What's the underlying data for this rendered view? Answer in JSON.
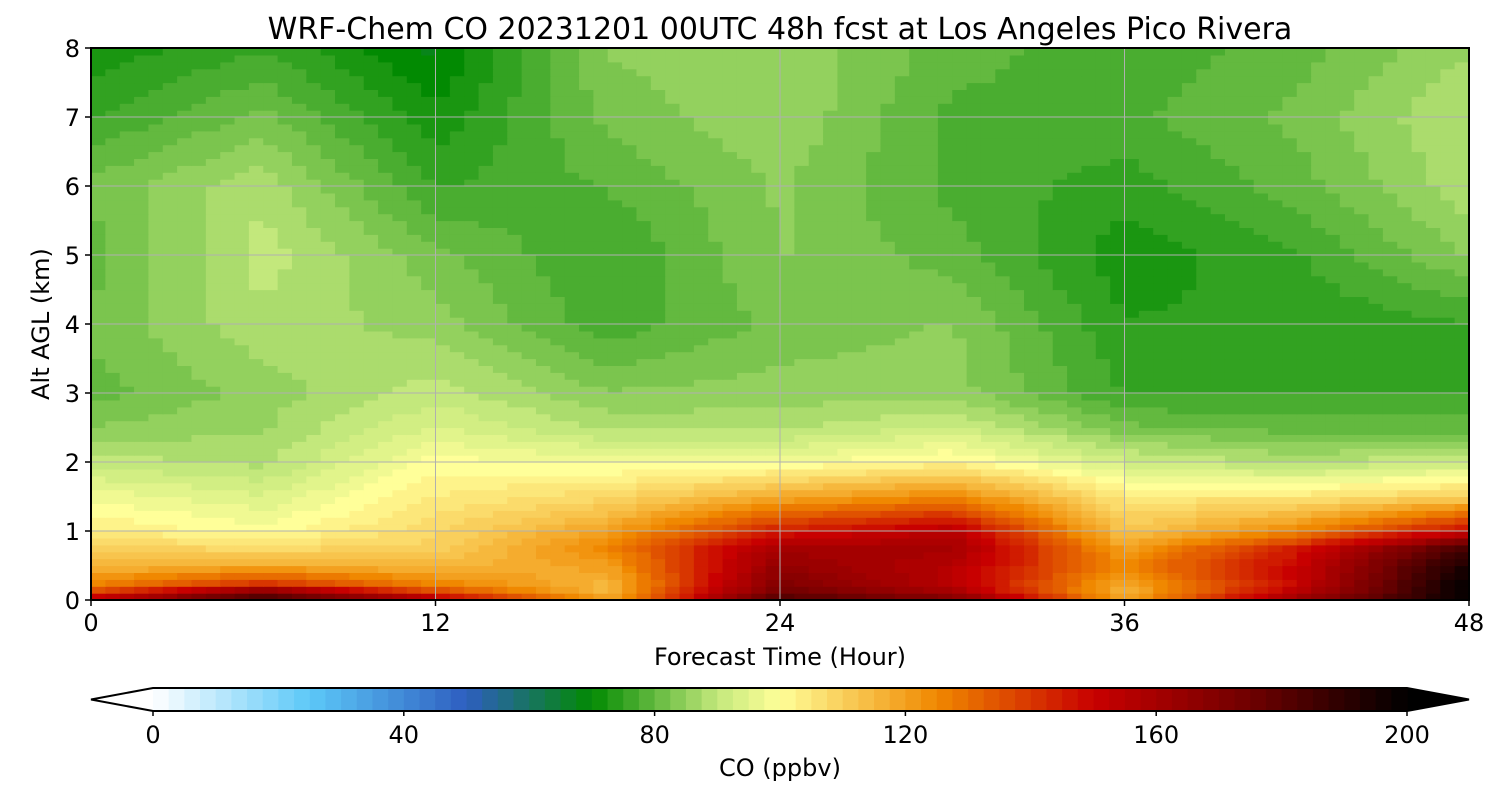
{
  "chart_data": {
    "type": "heatmap",
    "title": "WRF-Chem CO  20231201 00UTC 48h fcst at Los Angeles Pico Rivera",
    "xlabel": "Forecast Time (Hour)",
    "ylabel": "Alt AGL (km)",
    "xlim": [
      0,
      48
    ],
    "ylim": [
      0,
      8
    ],
    "xticks": [
      "0",
      "12",
      "24",
      "36",
      "48"
    ],
    "yticks": [
      "0",
      "1",
      "2",
      "3",
      "4",
      "5",
      "6",
      "7",
      "8"
    ],
    "grid": true,
    "colorbar": {
      "label": "CO  (ppbv)",
      "min": 0,
      "max": 200,
      "ticks": [
        "0",
        "40",
        "80",
        "120",
        "160",
        "200"
      ],
      "extend": "both",
      "colors": [
        {
          "value": 0,
          "color": "#ffffff"
        },
        {
          "value": 25,
          "color": "#5cc8f8"
        },
        {
          "value": 50,
          "color": "#2e5ec0"
        },
        {
          "value": 70,
          "color": "#028a02"
        },
        {
          "value": 90,
          "color": "#c3e87c"
        },
        {
          "value": 100,
          "color": "#ffff99"
        },
        {
          "value": 125,
          "color": "#f08800"
        },
        {
          "value": 150,
          "color": "#c80000"
        },
        {
          "value": 175,
          "color": "#6e0000"
        },
        {
          "value": 200,
          "color": "#000000"
        }
      ]
    },
    "x_hours": [
      0,
      6,
      12,
      18,
      24,
      30,
      36,
      42,
      48
    ],
    "z_km": [
      0,
      0.1,
      0.25,
      0.5,
      0.75,
      1,
      1.5,
      2,
      2.5,
      3,
      4,
      5,
      6,
      7,
      8
    ],
    "values": [
      [
        155,
        190,
        160,
        120,
        185,
        175,
        120,
        165,
        200
      ],
      [
        140,
        175,
        140,
        115,
        175,
        160,
        115,
        155,
        200
      ],
      [
        125,
        140,
        125,
        115,
        170,
        155,
        118,
        150,
        200
      ],
      [
        115,
        118,
        115,
        120,
        165,
        155,
        125,
        150,
        195
      ],
      [
        110,
        108,
        110,
        125,
        160,
        160,
        120,
        145,
        185
      ],
      [
        104,
        100,
        108,
        120,
        145,
        155,
        112,
        125,
        150
      ],
      [
        98,
        94,
        104,
        108,
        118,
        125,
        105,
        105,
        110
      ],
      [
        90,
        88,
        100,
        98,
        98,
        102,
        92,
        88,
        92
      ],
      [
        84,
        86,
        94,
        88,
        88,
        92,
        82,
        80,
        80
      ],
      [
        80,
        85,
        90,
        84,
        85,
        85,
        76,
        76,
        76
      ],
      [
        82,
        88,
        85,
        77,
        82,
        84,
        74,
        74,
        76
      ],
      [
        80,
        90,
        82,
        76,
        84,
        80,
        72,
        76,
        84
      ],
      [
        82,
        88,
        76,
        79,
        84,
        78,
        75,
        80,
        88
      ],
      [
        76,
        82,
        72,
        82,
        86,
        78,
        78,
        82,
        89
      ],
      [
        72,
        76,
        68,
        84,
        86,
        80,
        77,
        80,
        86
      ]
    ]
  }
}
